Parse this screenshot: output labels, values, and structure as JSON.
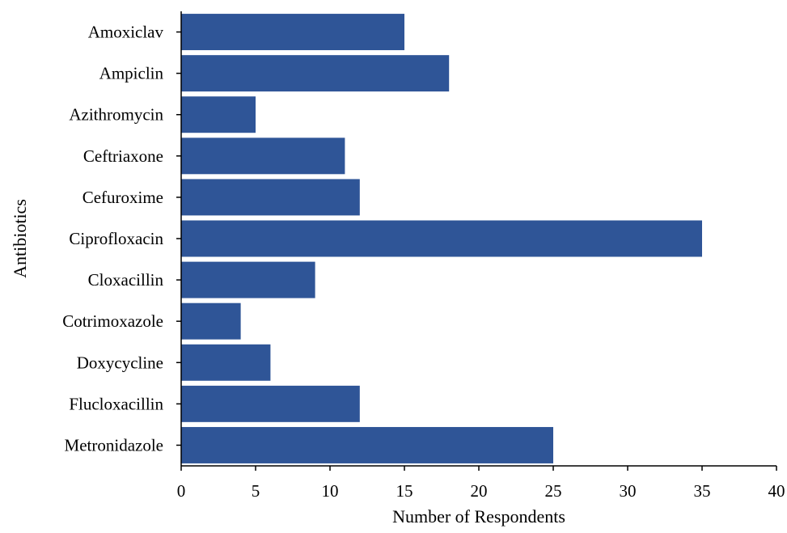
{
  "chart_data": {
    "type": "bar",
    "orientation": "horizontal",
    "categories": [
      "Amoxiclav",
      "Ampiclin",
      "Azithromycin",
      "Ceftriaxone",
      "Cefuroxime",
      "Ciprofloxacin",
      "Cloxacillin",
      "Cotrimoxazole",
      "Doxycycline",
      "Flucloxacillin",
      "Metronidazole"
    ],
    "values": [
      15,
      18,
      5,
      11,
      12,
      35,
      9,
      4,
      6,
      12,
      25
    ],
    "title": "",
    "xlabel": "Number of Respondents",
    "ylabel": "Antibiotics",
    "xlim": [
      0,
      40
    ],
    "xticks": [
      0,
      5,
      10,
      15,
      20,
      25,
      30,
      35,
      40
    ],
    "bar_color": "#2f5597",
    "grid": false,
    "legend": "none"
  }
}
